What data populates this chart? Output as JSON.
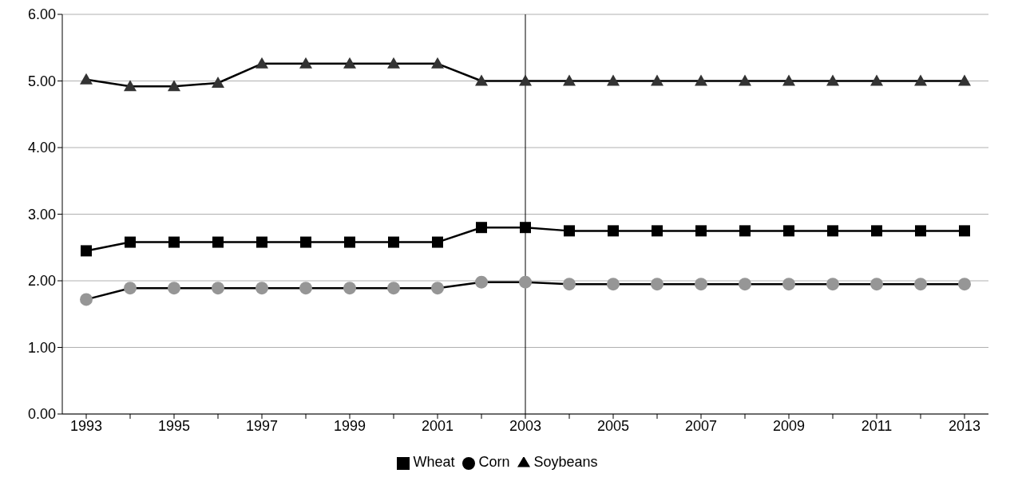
{
  "chart_data": {
    "type": "line",
    "categories": [
      "1993",
      null,
      "1995",
      null,
      "1997",
      null,
      "1999",
      null,
      "2001",
      null,
      "2003",
      null,
      "2005",
      null,
      "2007",
      null,
      "2009",
      null,
      "2011",
      null,
      "2013"
    ],
    "series": [
      {
        "name": "Wheat",
        "color": "#000000",
        "marker": "square",
        "values": [
          2.45,
          2.58,
          2.58,
          2.58,
          2.58,
          2.58,
          2.58,
          2.58,
          2.58,
          2.8,
          2.8,
          2.75,
          2.75,
          2.75,
          2.75,
          2.75,
          2.75,
          2.75,
          2.75,
          2.75,
          2.75
        ]
      },
      {
        "name": "Corn",
        "color": "#969696",
        "marker": "circle",
        "values": [
          1.72,
          1.89,
          1.89,
          1.89,
          1.89,
          1.89,
          1.89,
          1.89,
          1.89,
          1.98,
          1.98,
          1.95,
          1.95,
          1.95,
          1.95,
          1.95,
          1.95,
          1.95,
          1.95,
          1.95,
          1.95
        ]
      },
      {
        "name": "Soybeans",
        "color": "#333333",
        "marker": "triangle",
        "values": [
          5.02,
          4.92,
          4.92,
          4.97,
          5.26,
          5.26,
          5.26,
          5.26,
          5.26,
          5.0,
          5.0,
          5.0,
          5.0,
          5.0,
          5.0,
          5.0,
          5.0,
          5.0,
          5.0,
          5.0,
          5.0
        ]
      }
    ],
    "ylim": [
      0,
      6
    ],
    "yticks": [
      {
        "value": 0,
        "label": "0.00"
      },
      {
        "value": 1,
        "label": "1.00"
      },
      {
        "value": 2,
        "label": "2.00"
      },
      {
        "value": 3,
        "label": "3.00"
      },
      {
        "value": 4,
        "label": "4.00"
      },
      {
        "value": 5,
        "label": "5.00"
      },
      {
        "value": 6,
        "label": "6.00"
      }
    ],
    "ref_lines": [
      {
        "axis": "x",
        "value": "2003",
        "color": "#000000"
      }
    ],
    "grid": "y",
    "legend": "bottom",
    "line_style": "solid"
  }
}
